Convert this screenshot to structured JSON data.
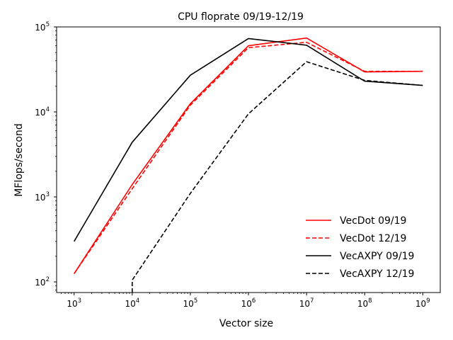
{
  "chart_data": {
    "type": "line",
    "title": "CPU floprate 09/19-12/19",
    "xlabel": "Vector size",
    "ylabel": "MFlops/second",
    "xscale": "log",
    "yscale": "log",
    "xlim": [
      500,
      2000000000
    ],
    "ylim": [
      75,
      100000
    ],
    "grid": false,
    "legend_position": "lower-right",
    "x_ticks": [
      {
        "base": "10",
        "exp": "3",
        "value": 1000
      },
      {
        "base": "10",
        "exp": "4",
        "value": 10000
      },
      {
        "base": "10",
        "exp": "5",
        "value": 100000
      },
      {
        "base": "10",
        "exp": "6",
        "value": 1000000
      },
      {
        "base": "10",
        "exp": "7",
        "value": 10000000
      },
      {
        "base": "10",
        "exp": "8",
        "value": 100000000
      },
      {
        "base": "10",
        "exp": "9",
        "value": 1000000000
      }
    ],
    "y_ticks": [
      {
        "base": "10",
        "exp": "2",
        "value": 100
      },
      {
        "base": "10",
        "exp": "3",
        "value": 1000
      },
      {
        "base": "10",
        "exp": "4",
        "value": 10000
      },
      {
        "base": "10",
        "exp": "5",
        "value": 100000
      }
    ],
    "series": [
      {
        "name": "VecDot 09/19",
        "color": "#ff0000",
        "dash": "solid",
        "x": [
          1000,
          10000,
          100000,
          1000000,
          10000000,
          100000000,
          1000000000
        ],
        "y": [
          125,
          1400,
          12500,
          60000,
          74000,
          29500,
          30000
        ]
      },
      {
        "name": "VecDot 12/19",
        "color": "#ff0000",
        "dash": "dashed",
        "x": [
          1000,
          10000,
          100000,
          1000000,
          10000000,
          100000000,
          1000000000
        ],
        "y": [
          125,
          1250,
          12000,
          57000,
          66000,
          30000,
          30000
        ]
      },
      {
        "name": "VecAXPY 09/19",
        "color": "#000000",
        "dash": "solid",
        "x": [
          1000,
          10000,
          100000,
          1000000,
          10000000,
          100000000,
          1000000000
        ],
        "y": [
          300,
          4400,
          27000,
          73000,
          61000,
          23000,
          20500
        ]
      },
      {
        "name": "VecAXPY 12/19",
        "color": "#000000",
        "dash": "dashed",
        "x": [
          10000,
          10000,
          100000,
          1000000,
          10000000,
          100000000,
          1000000000
        ],
        "y": [
          75,
          105,
          1100,
          9500,
          39000,
          23500,
          20500
        ]
      }
    ]
  }
}
